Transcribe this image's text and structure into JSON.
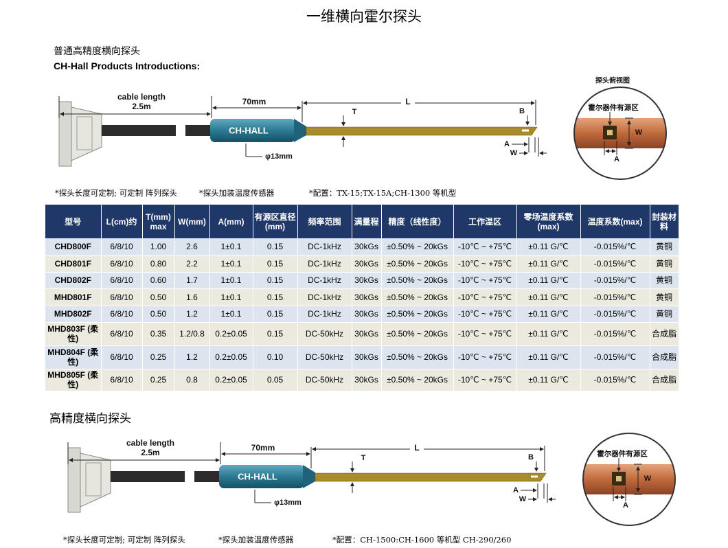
{
  "title": "一维横向霍尔探头",
  "section_1": {
    "heading": "普通高精度横向探头",
    "subheading": "CH-Hall  Products Introductions:",
    "diagram": {
      "cable_length": [
        "cable length",
        "2.5m"
      ],
      "body_length": "70mm",
      "body_label": "CH-HALL",
      "diameter": "φ13mm",
      "thickness": "T",
      "length": "L",
      "tip_b": "B",
      "tip_a": "A",
      "tip_w": "W",
      "inset_title": "探头俯视图",
      "inset_label": "霍尔器件有源区",
      "inset_w": "W",
      "inset_a": "A"
    },
    "notes": [
      "*探头长度可定制; 可定制 阵列探头",
      "*探头加装温度传感器",
      "*配置：TX-15;TX-15A;CH-1300 等机型"
    ]
  },
  "table": {
    "headers": [
      "型号",
      "L(cm)约",
      "T(mm) max",
      "W(mm)",
      "A(mm)",
      "有源区直径 (mm)",
      "频率范围",
      "满量程",
      "精度（线性度）",
      "工作温区",
      "零场温度系数 (max)",
      "温度系数(max)",
      "封装材料"
    ],
    "rows": [
      [
        "CHD800F",
        "6/8/10",
        "1.00",
        "2.6",
        "1±0.1",
        "0.15",
        "DC-1kHz",
        "30kGs",
        "±0.50% ~ 20kGs",
        "-10℃ ~ +75℃",
        "±0.11 G/℃",
        "-0.015%/℃",
        "黄铜"
      ],
      [
        "CHD801F",
        "6/8/10",
        "0.80",
        "2.2",
        "1±0.1",
        "0.15",
        "DC-1kHz",
        "30kGs",
        "±0.50% ~ 20kGs",
        "-10℃ ~ +75℃",
        "±0.11 G/℃",
        "-0.015%/℃",
        "黄铜"
      ],
      [
        "CHD802F",
        "6/8/10",
        "0.60",
        "1.7",
        "1±0.1",
        "0.15",
        "DC-1kHz",
        "30kGs",
        "±0.50% ~ 20kGs",
        "-10℃ ~ +75℃",
        "±0.11 G/℃",
        "-0.015%/℃",
        "黄铜"
      ],
      [
        "MHD801F",
        "6/8/10",
        "0.50",
        "1.6",
        "1±0.1",
        "0.15",
        "DC-1kHz",
        "30kGs",
        "±0.50% ~ 20kGs",
        "-10℃ ~ +75℃",
        "±0.11 G/℃",
        "-0.015%/℃",
        "黄铜"
      ],
      [
        "MHD802F",
        "6/8/10",
        "0.50",
        "1.2",
        "1±0.1",
        "0.15",
        "DC-1kHz",
        "30kGs",
        "±0.50% ~ 20kGs",
        "-10℃ ~ +75℃",
        "±0.11 G/℃",
        "-0.015%/℃",
        "黄铜"
      ],
      [
        "MHD803F (柔性)",
        "6/8/10",
        "0.35",
        "1.2/0.8",
        "0.2±0.05",
        "0.15",
        "DC-50kHz",
        "30kGs",
        "±0.50% ~ 20kGs",
        "-10℃ ~ +75℃",
        "±0.11 G/℃",
        "-0.015%/℃",
        "合成脂"
      ],
      [
        "MHD804F (柔性)",
        "6/8/10",
        "0.25",
        "1.2",
        "0.2±0.05",
        "0.10",
        "DC-50kHz",
        "30kGs",
        "±0.50% ~ 20kGs",
        "-10℃ ~ +75℃",
        "±0.11 G/℃",
        "-0.015%/℃",
        "合成脂"
      ],
      [
        "MHD805F (柔性)",
        "6/8/10",
        "0.25",
        "0.8",
        "0.2±0.05",
        "0.05",
        "DC-50kHz",
        "30kGs",
        "±0.50% ~ 20kGs",
        "-10℃ ~ +75℃",
        "±0.11 G/℃",
        "-0.015%/℃",
        "合成脂"
      ]
    ]
  },
  "section_2": {
    "heading": "高精度横向探头",
    "diagram": {
      "cable_length": [
        "cable length",
        "2.5m"
      ],
      "body_length": "70mm",
      "body_label": "CH-HALL",
      "diameter": "φ13mm",
      "thickness": "T",
      "length": "L",
      "tip_b": "B",
      "tip_a": "A",
      "tip_w": "W",
      "inset_label": "霍尔器件有源区",
      "inset_w": "W",
      "inset_a": "A"
    },
    "notes": [
      "*探头长度可定制; 可定制 阵列探头",
      "*探头加装温度传感器",
      "*配置：CH-1500:CH-1600 等机型 CH-290/260"
    ]
  }
}
